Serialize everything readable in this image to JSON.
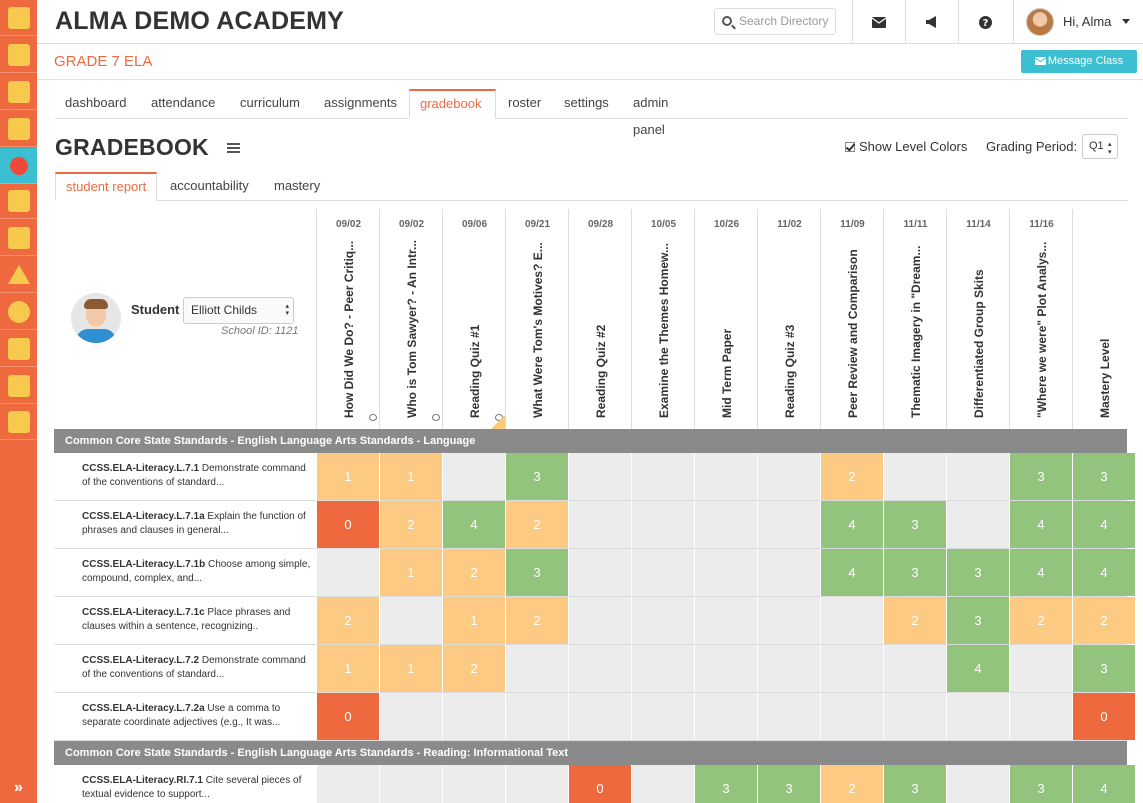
{
  "app": {
    "school_name": "ALMA DEMO ACADEMY",
    "search_placeholder": "Search Directory",
    "user_greeting": "Hi, Alma"
  },
  "class": {
    "name": "GRADE 7 ELA",
    "message_button": "Message Class"
  },
  "sidebar": {
    "items": [
      {
        "icon": "school-icon"
      },
      {
        "icon": "contacts-icon"
      },
      {
        "icon": "calendar-icon"
      },
      {
        "icon": "classes-icon"
      },
      {
        "icon": "apple-icon"
      },
      {
        "icon": "reports-icon"
      },
      {
        "icon": "id-card-icon"
      },
      {
        "icon": "warning-icon"
      },
      {
        "icon": "billing-icon"
      },
      {
        "icon": "checklist-icon"
      },
      {
        "icon": "people-icon"
      },
      {
        "icon": "admin-school-icon"
      }
    ],
    "expand_label": "»"
  },
  "nav_tabs": [
    {
      "label": "dashboard"
    },
    {
      "label": "attendance"
    },
    {
      "label": "curriculum"
    },
    {
      "label": "assignments"
    },
    {
      "label": "gradebook",
      "active": true
    },
    {
      "label": "roster"
    },
    {
      "label": "settings"
    },
    {
      "label": "admin panel"
    }
  ],
  "gradebook": {
    "title": "GRADEBOOK",
    "show_level_colors": "Show Level Colors",
    "grading_period_label": "Grading Period:",
    "grading_period": "Q1"
  },
  "sub_tabs": [
    {
      "label": "student report",
      "active": true
    },
    {
      "label": "accountability"
    },
    {
      "label": "mastery"
    }
  ],
  "student": {
    "label": "Student",
    "selected": "Elliott Childs",
    "school_id": "School ID: 1121"
  },
  "columns": [
    {
      "date": "09/02",
      "title": "How Did We Do? - Peer Critiq...",
      "comment": true
    },
    {
      "date": "09/02",
      "title": "Who is Tom Sawyer? - An Intr...",
      "comment": true
    },
    {
      "date": "09/06",
      "title": "Reading Quiz #1",
      "comment": true,
      "flag": true
    },
    {
      "date": "09/21",
      "title": "What Were Tom's Motives? E..."
    },
    {
      "date": "09/28",
      "title": "Reading Quiz #2"
    },
    {
      "date": "10/05",
      "title": "Examine the Themes Homew..."
    },
    {
      "date": "10/26",
      "title": "Mid Term Paper"
    },
    {
      "date": "11/02",
      "title": "Reading Quiz #3"
    },
    {
      "date": "11/09",
      "title": "Peer Review and Comparison"
    },
    {
      "date": "11/11",
      "title": "Thematic Imagery in \"Dream..."
    },
    {
      "date": "11/14",
      "title": "Differentiated Group Skits"
    },
    {
      "date": "11/16",
      "title": "\"Where we were\" Plot Analys..."
    },
    {
      "date": "",
      "title": "Mastery Level"
    }
  ],
  "sections": [
    {
      "title": "Common Core State Standards - English Language Arts Standards - Language",
      "rows": [
        {
          "code": "CCSS.ELA-Literacy.L.7.1",
          "desc": " Demonstrate command of the conventions of standard...",
          "scores": [
            "1",
            "1",
            "",
            "3",
            "",
            "",
            "",
            "",
            "2",
            "",
            "",
            "3",
            "3"
          ]
        },
        {
          "code": "CCSS.ELA-Literacy.L.7.1a",
          "desc": " Explain the function of phrases and clauses in general...",
          "scores": [
            "0",
            "2",
            "4",
            "2",
            "",
            "",
            "",
            "",
            "4",
            "3",
            "",
            "4",
            "4"
          ]
        },
        {
          "code": "CCSS.ELA-Literacy.L.7.1b",
          "desc": " Choose among simple, compound, complex, and...",
          "scores": [
            "",
            "1",
            "2",
            "3",
            "",
            "",
            "",
            "",
            "4",
            "3",
            "3",
            "4",
            "4"
          ]
        },
        {
          "code": "CCSS.ELA-Literacy.L.7.1c",
          "desc": " Place phrases and clauses within a sentence, recognizing..",
          "scores": [
            "2",
            "",
            "1",
            "2",
            "",
            "",
            "",
            "",
            "",
            "2",
            "3",
            "2",
            "2"
          ]
        },
        {
          "code": "CCSS.ELA-Literacy.L.7.2",
          "desc": " Demonstrate command of the conventions of standard...",
          "scores": [
            "1",
            "1",
            "2",
            "",
            "",
            "",
            "",
            "",
            "",
            "",
            "4",
            "",
            "3"
          ]
        },
        {
          "code": "CCSS.ELA-Literacy.L.7.2a",
          "desc": " Use a comma to separate coordinate adjectives (e.g., It was...",
          "scores": [
            "0",
            "",
            "",
            "",
            "",
            "",
            "",
            "",
            "",
            "",
            "",
            "",
            "0"
          ]
        }
      ]
    },
    {
      "title": "Common Core State Standards - English Language Arts Standards - Reading: Informational Text",
      "rows": [
        {
          "code": "CCSS.ELA-Literacy.RI.7.1",
          "desc": " Cite several pieces of textual evidence to support...",
          "scores": [
            "",
            "",
            "",
            "",
            "0",
            "",
            "3",
            "3",
            "2",
            "3",
            "",
            "3",
            "4"
          ]
        }
      ]
    }
  ],
  "colors": {
    "brand_orange": "#ee6a3e",
    "accent_teal": "#3cbfd0",
    "score_low": "#ee6a3e",
    "score_mid": "#fdca84",
    "score_high": "#93c47d",
    "score_empty": "#ececec"
  }
}
